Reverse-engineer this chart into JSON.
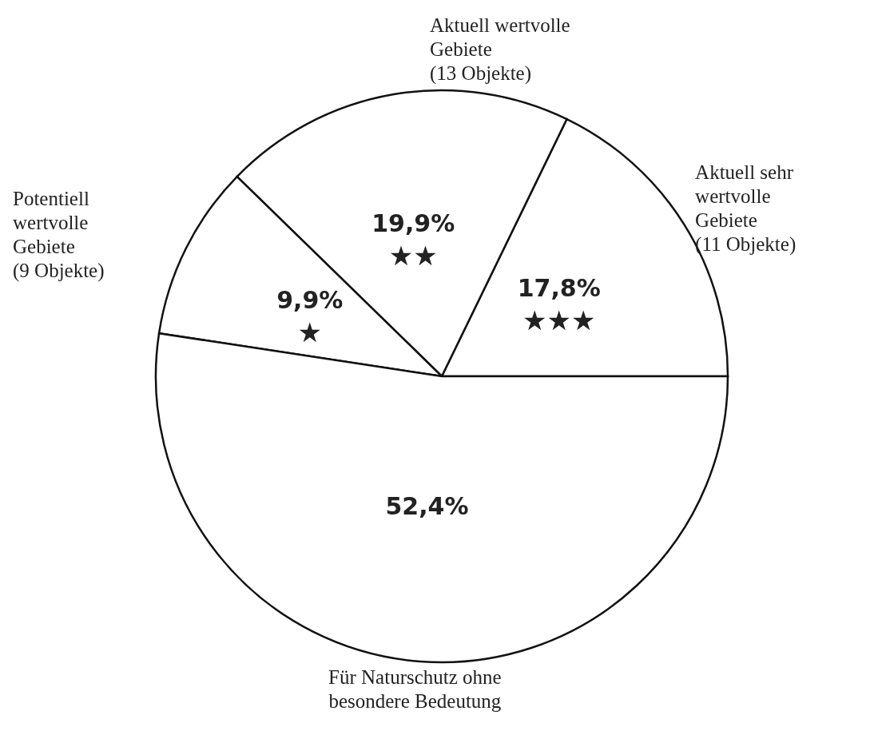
{
  "chart_data": {
    "type": "pie",
    "categories": [
      "Aktuell sehr\nwertvolle\nGebiete\n(11 Objekte)",
      "Aktuell wertvolle\nGebiete\n(13 Objekte)",
      "Potentiell\nwertvolle\nGebiete\n(9 Objekte)",
      "Für Naturschutz ohne\nbesondere Bedeutung"
    ],
    "values": [
      17.8,
      19.9,
      9.9,
      52.4
    ],
    "colors": [
      "#ffffff",
      "#ffffff",
      "#ffffff",
      "#ffffff"
    ],
    "value_labels": [
      "17,8%",
      "19,9%",
      "9,9%",
      "52,4%"
    ],
    "annotations": [
      {
        "text": "★★★",
        "x": "Aktuell sehr\nwertvolle\nGebiete\n(11 Objekte)"
      },
      {
        "text": "★★",
        "x": "Aktuell wertvolle\nGebiete\n(13 Objekte)"
      },
      {
        "text": "★",
        "x": "Potentiell\nwertvolle\nGebiete\n(9 Objekte)"
      }
    ]
  }
}
